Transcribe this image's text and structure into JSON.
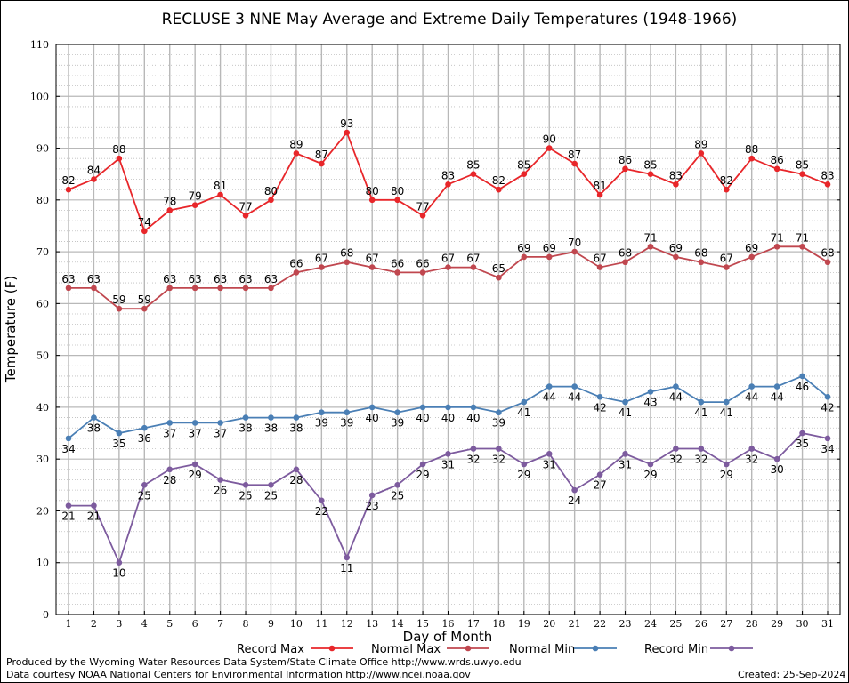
{
  "chart_data": {
    "type": "line",
    "title": "RECLUSE 3 NNE May Average and Extreme Daily Temperatures (1948-1966)",
    "xlabel": "Day of Month",
    "ylabel": "Temperature (F)",
    "ylim": [
      0,
      110
    ],
    "yticks": [
      0,
      10,
      20,
      30,
      40,
      50,
      60,
      70,
      80,
      90,
      100,
      110
    ],
    "x": [
      1,
      2,
      3,
      4,
      5,
      6,
      7,
      8,
      9,
      10,
      11,
      12,
      13,
      14,
      15,
      16,
      17,
      18,
      19,
      20,
      21,
      22,
      23,
      24,
      25,
      26,
      27,
      28,
      29,
      30,
      31
    ],
    "grid": "major and minor",
    "legend_position": "bottom",
    "series": [
      {
        "name": "Record Max",
        "color": "#e8262a",
        "label_pos": "above",
        "values": [
          82,
          84,
          88,
          74,
          78,
          79,
          81,
          77,
          80,
          89,
          87,
          93,
          80,
          80,
          77,
          83,
          85,
          82,
          85,
          90,
          87,
          81,
          86,
          85,
          83,
          89,
          82,
          88,
          86,
          85,
          83
        ]
      },
      {
        "name": "Normal Max",
        "color": "#c0474f",
        "label_pos": "above",
        "values": [
          63,
          63,
          59,
          59,
          63,
          63,
          63,
          63,
          63,
          66,
          67,
          68,
          67,
          66,
          66,
          67,
          67,
          65,
          69,
          69,
          70,
          67,
          68,
          71,
          69,
          68,
          67,
          69,
          71,
          71,
          68
        ]
      },
      {
        "name": "Normal Min",
        "color": "#4a7fb5",
        "label_pos": "below",
        "values": [
          34,
          38,
          35,
          36,
          37,
          37,
          37,
          38,
          38,
          38,
          39,
          39,
          40,
          39,
          40,
          40,
          40,
          39,
          41,
          44,
          44,
          42,
          41,
          43,
          44,
          41,
          41,
          44,
          44,
          46,
          42
        ]
      },
      {
        "name": "Record Min",
        "color": "#7d5b9e",
        "label_pos": "below",
        "values": [
          21,
          21,
          10,
          25,
          28,
          29,
          26,
          25,
          25,
          28,
          22,
          11,
          23,
          25,
          29,
          31,
          32,
          32,
          29,
          31,
          24,
          27,
          31,
          29,
          32,
          32,
          29,
          32,
          30,
          35,
          34
        ]
      }
    ]
  },
  "footer": {
    "produced_by": "Produced by the Wyoming Water Resources Data System/State Climate Office http://www.wrds.uwyo.edu",
    "data_courtesy": "Data courtesy NOAA National Centers for Environmental Information http://www.ncei.noaa.gov",
    "created": "Created:  25-Sep-2024"
  }
}
